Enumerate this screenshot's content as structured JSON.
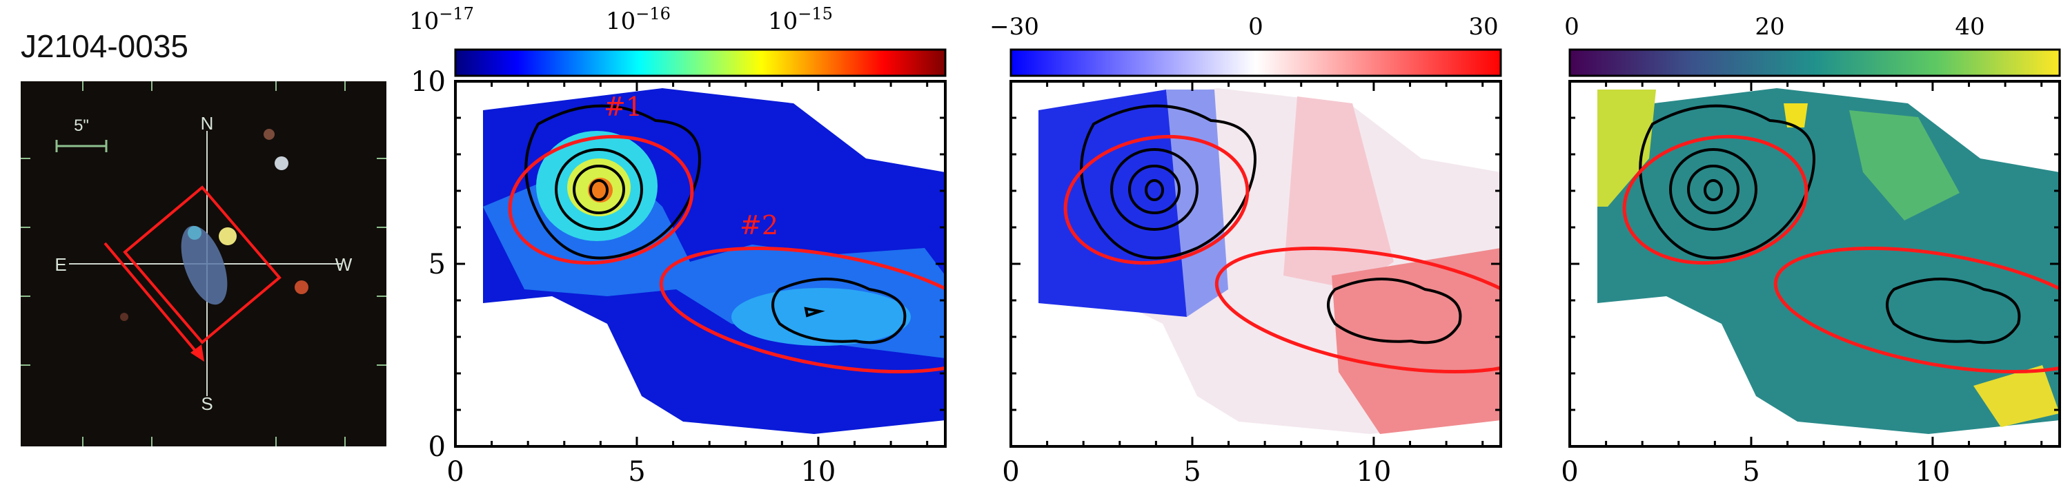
{
  "object_name": "J2104-0035",
  "thumbnail": {
    "scale_label": "5\"",
    "compass": {
      "north": "N",
      "south": "S",
      "east": "E",
      "west": "W"
    }
  },
  "panels": [
    {
      "colorbar": {
        "scale": "log",
        "colormap": "jet",
        "tick_labels": [
          "10",
          "10",
          "10"
        ],
        "tick_exponents": [
          "−17",
          "−16",
          "−15"
        ],
        "tick_values": [
          1e-17,
          1e-16,
          1e-15
        ],
        "range": [
          1e-17,
          1e-14
        ]
      },
      "region_labels": [
        "#1",
        "#2"
      ]
    },
    {
      "colorbar": {
        "scale": "linear",
        "colormap": "bwr",
        "tick_labels": [
          "−30",
          "0",
          "30"
        ],
        "tick_values": [
          -30,
          0,
          30
        ],
        "range": [
          -30,
          30
        ]
      }
    },
    {
      "colorbar": {
        "scale": "linear",
        "colormap": "viridis",
        "tick_labels": [
          "0",
          "20",
          "40"
        ],
        "tick_values": [
          0,
          20,
          40
        ],
        "range": [
          0,
          49
        ]
      }
    }
  ],
  "chart_data": {
    "type": "heatmap",
    "x_ticks": [
      "0",
      "5",
      "10"
    ],
    "y_ticks": [
      "0",
      "5",
      "10"
    ],
    "xlim": [
      0,
      13.5
    ],
    "ylim": [
      0,
      10
    ],
    "grid": false,
    "ellipses": [
      {
        "label": "#1",
        "center": [
          4.0,
          7.0
        ],
        "semi_axes": [
          2.6,
          1.7
        ],
        "angle_deg": 10
      },
      {
        "label": "#2",
        "center": [
          10.5,
          3.7
        ],
        "semi_axes": [
          4.8,
          1.6
        ],
        "angle_deg": -10
      }
    ]
  },
  "colors": {
    "ellipse": "#ff1a1a",
    "contour": "#000000",
    "thumbnail_bg": "#110d0a"
  }
}
